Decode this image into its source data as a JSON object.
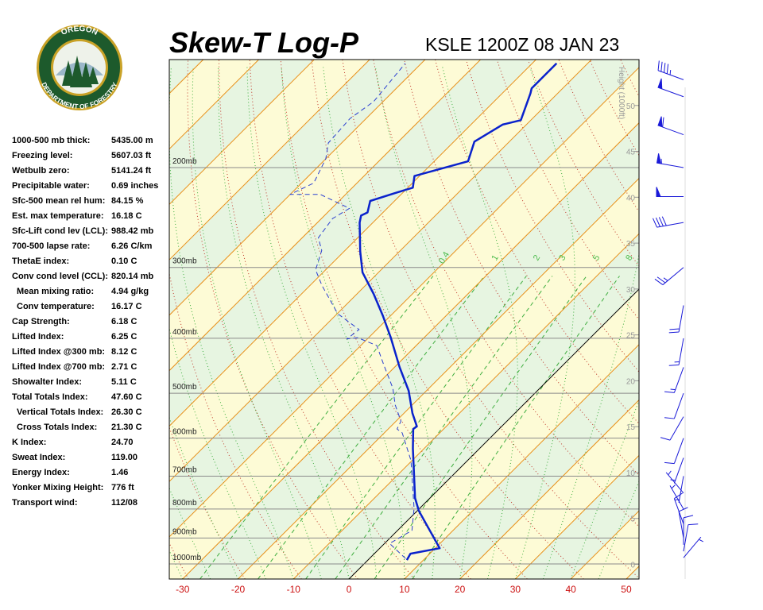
{
  "logo": {
    "top": "OREGON",
    "bottom": "DEPARTMENT OF FORESTRY"
  },
  "indices": [
    {
      "label": "1000-500 mb thick:",
      "value": "5435.00 m"
    },
    {
      "label": "Freezing level:",
      "value": "5607.03 ft"
    },
    {
      "label": "Wetbulb zero:",
      "value": "5141.24 ft"
    },
    {
      "label": "Precipitable water:",
      "value": "0.69 inches"
    },
    {
      "label": "Sfc-500 mean rel hum:",
      "value": "84.15 %"
    },
    {
      "label": "Est. max temperature:",
      "value": "16.18 C"
    },
    {
      "label": "Sfc-Lift cond lev (LCL):",
      "value": "988.42 mb"
    },
    {
      "label": "700-500 lapse rate:",
      "value": "6.26 C/km"
    },
    {
      "label": "ThetaE index:",
      "value": "0.10 C"
    },
    {
      "label": "Conv cond level (CCL):",
      "value": "820.14 mb"
    },
    {
      "label": "Mean mixing ratio:",
      "value": "4.94 g/kg"
    },
    {
      "label": "Conv temperature:",
      "value": "16.17 C"
    },
    {
      "label": "Cap Strength:",
      "value": "6.18 C"
    },
    {
      "label": "Lifted Index:",
      "value": "6.25 C"
    },
    {
      "label": "Lifted Index @300 mb:",
      "value": "8.12 C"
    },
    {
      "label": "Lifted Index @700 mb:",
      "value": "2.71 C"
    },
    {
      "label": "Showalter Index:",
      "value": "5.11 C"
    },
    {
      "label": "Total Totals Index:",
      "value": "47.60 C"
    },
    {
      "label": "Vertical Totals Index:",
      "value": "26.30 C"
    },
    {
      "label": "Cross Totals Index:",
      "value": "21.30 C"
    },
    {
      "label": "K Index:",
      "value": "24.70"
    },
    {
      "label": "Sweat Index:",
      "value": "119.00"
    },
    {
      "label": "Energy Index:",
      "value": "1.46"
    },
    {
      "label": "Yonker Mixing Height:",
      "value": "776 ft"
    },
    {
      "label": "Transport wind:",
      "value": "112/08"
    }
  ],
  "chart_data": {
    "type": "skewt",
    "title": "Skew-T Log-P",
    "subtitle": "KSLE 1200Z 08 JAN 23",
    "xlim": [
      -32.4,
      52.3
    ],
    "xticks": [
      -30,
      -20,
      -10,
      0,
      10,
      20,
      30,
      40,
      50
    ],
    "plim": [
      1063,
      129
    ],
    "pticks": [
      {
        "value": 1000,
        "label": "1000mb"
      },
      {
        "value": 900,
        "label": "900mb"
      },
      {
        "value": 800,
        "label": "800mb"
      },
      {
        "value": 700,
        "label": "700mb"
      },
      {
        "value": 600,
        "label": "600mb"
      },
      {
        "value": 500,
        "label": "500mb"
      },
      {
        "value": 400,
        "label": "400mb"
      },
      {
        "value": 300,
        "label": "300mb"
      },
      {
        "value": 200,
        "label": "200mb"
      }
    ],
    "y2label": "Height (1000ft)",
    "y2lim": [
      -1.6,
      55
    ],
    "y2ticks": [
      0,
      5,
      10,
      15,
      20,
      25,
      30,
      35,
      40,
      45,
      50
    ],
    "mixing_ratios": [
      0.4,
      1,
      2,
      3,
      5,
      8
    ],
    "series": [
      {
        "color": "#0a22cc",
        "dash": false,
        "pressure": [
          984,
          959,
          938,
          806,
          765,
          626,
          578,
          572,
          542,
          495,
          449,
          399,
          365,
          334,
          306,
          281,
          250,
          243,
          240,
          229,
          222,
          217,
          207,
          195,
          180,
          168,
          165,
          148,
          145,
          131
        ],
        "values": [
          7.0,
          6.5,
          10.8,
          0.3,
          -2.7,
          -12.0,
          -15.5,
          -15.3,
          -18.5,
          -23.2,
          -29.2,
          -36.0,
          -41.4,
          -47.0,
          -52.9,
          -57.1,
          -62.4,
          -63.4,
          -62.8,
          -64.4,
          -61.4,
          -59.1,
          -60.9,
          -53.9,
          -56.3,
          -54.3,
          -51.8,
          -54.9,
          -55.6,
          -55.6
        ]
      },
      {
        "color": "#2a3fd0",
        "dash": true,
        "pressure": [
          978,
          920,
          873,
          798,
          657,
          587,
          578,
          560,
          524,
          490,
          446,
          412,
          399,
          401,
          386,
          362,
          323,
          303,
          280,
          266,
          246,
          236,
          223,
          223,
          213,
          193,
          181,
          164,
          153,
          131
        ],
        "values": [
          6.5,
          0.9,
          2.6,
          -1.0,
          -10.2,
          -16.8,
          -18.4,
          -19.1,
          -23.1,
          -26.5,
          -32.3,
          -37.1,
          -42.0,
          -43.7,
          -43.2,
          -49.9,
          -57.8,
          -61.8,
          -64.2,
          -67.1,
          -68.0,
          -66.8,
          -74.6,
          -80.0,
          -77.8,
          -80.0,
          -82.4,
          -82.9,
          -81.7,
          -82.9
        ]
      }
    ],
    "winds": {
      "pressure": [
        975,
        950,
        925,
        900,
        850,
        800,
        750,
        700,
        650,
        600,
        550,
        500,
        450,
        400,
        350,
        300,
        250,
        225,
        200,
        175,
        150,
        140
      ],
      "direction": [
        40,
        10,
        360,
        350,
        340,
        330,
        320,
        190,
        200,
        200,
        210,
        200,
        200,
        190,
        190,
        230,
        260,
        270,
        280,
        290,
        290,
        290
      ],
      "speed": [
        5,
        10,
        10,
        10,
        10,
        5,
        5,
        5,
        5,
        10,
        10,
        10,
        15,
        15,
        20,
        25,
        40,
        50,
        55,
        60,
        50,
        45
      ],
      "color": "#1a1ad8"
    }
  }
}
